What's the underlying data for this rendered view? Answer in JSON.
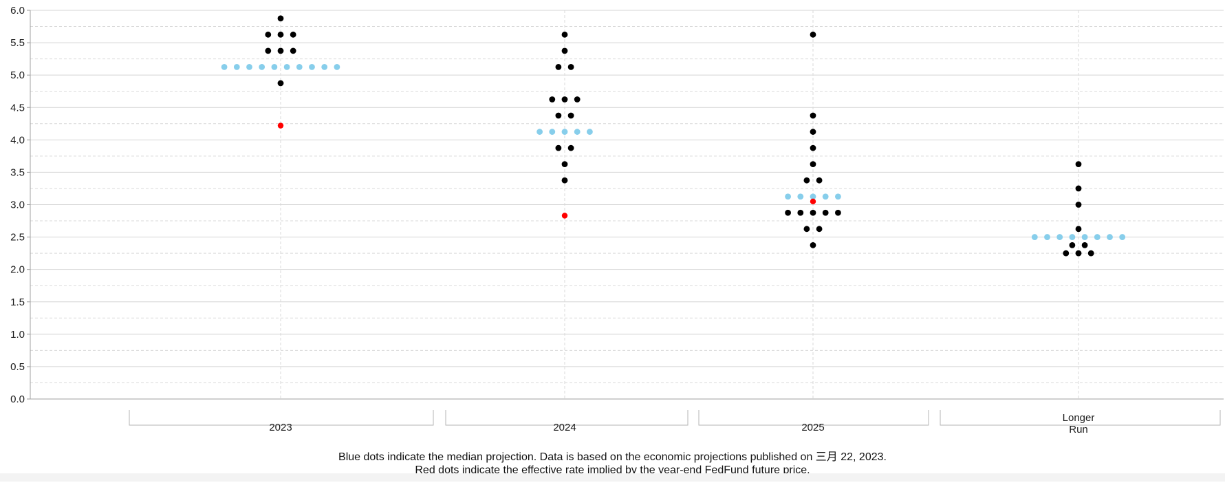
{
  "colors": {
    "participant_dot": "#000000",
    "median_dot": "#87ceeb",
    "implied_rate_dot": "#ff0000",
    "grid_major": "#d4d4d4",
    "grid_minor": "#d9d9d9",
    "axis_text": "#1a1a1a"
  },
  "footnotes": [
    "Blue dots indicate the median projection. Data is based on the economic projections published on 三月 22, 2023.",
    "Red dots indicate the effective rate implied by the year-end FedFund future price."
  ],
  "chart_data": {
    "type": "scatter",
    "title": "",
    "xlabel": "",
    "ylabel": "",
    "ylim": [
      0.0,
      6.0
    ],
    "y_ticks": [
      "0.0",
      "0.5",
      "1.0",
      "1.5",
      "2.0",
      "2.5",
      "3.0",
      "3.5",
      "4.0",
      "4.5",
      "5.0",
      "5.5",
      "6.0"
    ],
    "grid": "horizontal major and minor gridlines, vertical dashed line at each category",
    "legend": "none",
    "categories": [
      {
        "label": [
          "2023"
        ],
        "participants": [
          {
            "rate": 5.875,
            "count": 1
          },
          {
            "rate": 5.625,
            "count": 3
          },
          {
            "rate": 5.375,
            "count": 3
          },
          {
            "rate": 4.875,
            "count": 1
          }
        ],
        "median": {
          "rate": 5.125,
          "count": 10
        },
        "implied_rate": 4.22
      },
      {
        "label": [
          "2024"
        ],
        "participants": [
          {
            "rate": 5.625,
            "count": 1
          },
          {
            "rate": 5.375,
            "count": 1
          },
          {
            "rate": 5.125,
            "count": 2
          },
          {
            "rate": 4.625,
            "count": 3
          },
          {
            "rate": 4.375,
            "count": 2
          },
          {
            "rate": 3.875,
            "count": 2
          },
          {
            "rate": 3.625,
            "count": 1
          },
          {
            "rate": 3.375,
            "count": 1
          }
        ],
        "median": {
          "rate": 4.125,
          "count": 5
        },
        "implied_rate": 2.83
      },
      {
        "label": [
          "2025"
        ],
        "participants": [
          {
            "rate": 5.625,
            "count": 1
          },
          {
            "rate": 4.375,
            "count": 1
          },
          {
            "rate": 4.125,
            "count": 1
          },
          {
            "rate": 3.875,
            "count": 1
          },
          {
            "rate": 3.625,
            "count": 1
          },
          {
            "rate": 3.375,
            "count": 2
          },
          {
            "rate": 2.875,
            "count": 5
          },
          {
            "rate": 2.625,
            "count": 2
          },
          {
            "rate": 2.375,
            "count": 1
          }
        ],
        "median": {
          "rate": 3.125,
          "count": 5
        },
        "implied_rate": 3.05
      },
      {
        "label": [
          "Longer",
          "Run"
        ],
        "participants": [
          {
            "rate": 3.625,
            "count": 1
          },
          {
            "rate": 3.25,
            "count": 1
          },
          {
            "rate": 3.0,
            "count": 1
          },
          {
            "rate": 2.625,
            "count": 1
          },
          {
            "rate": 2.375,
            "count": 2
          },
          {
            "rate": 2.25,
            "count": 3
          }
        ],
        "median": {
          "rate": 2.5,
          "count": 8
        },
        "implied_rate": null
      }
    ]
  }
}
